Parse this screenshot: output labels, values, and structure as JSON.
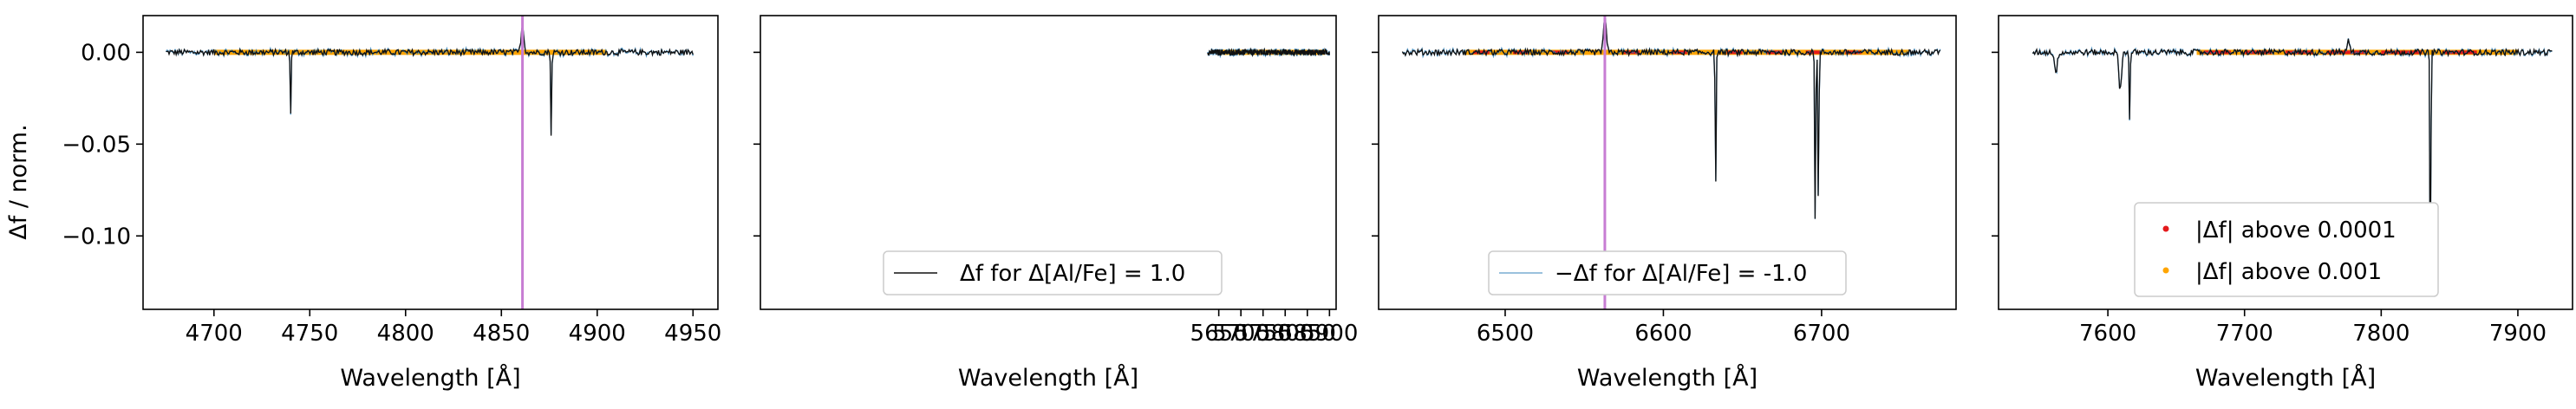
{
  "colors": {
    "delta_line": "#111111",
    "neg_delta_line": "#1f77b4",
    "above_0001": "#e41a1c",
    "above_001": "#ffa500",
    "marker_line": "#c77dd3",
    "axes": "#000000"
  },
  "chart_data": [
    {
      "type": "line",
      "panel": 1,
      "xlabel": "Wavelength [Å]",
      "ylabel": "Δf / norm.",
      "xlim": [
        4663,
        4963
      ],
      "ylim": [
        -0.14,
        0.02
      ],
      "xticks": [
        4700,
        4750,
        4800,
        4850,
        4900,
        4950
      ],
      "xtick_labels": [
        "4700",
        "4750",
        "4800",
        "4850",
        "4900",
        "4950"
      ],
      "yticks": [
        0.0,
        -0.05,
        -0.1
      ],
      "ytick_labels": [
        "0.00",
        "−0.05",
        "−0.10"
      ],
      "range": [
        4675,
        4950
      ],
      "marker_line": 4861,
      "features": [
        {
          "x": 4740,
          "y": -0.033
        },
        {
          "x": 4861,
          "y": 0.015
        },
        {
          "x": 4876,
          "y": -0.046
        }
      ],
      "highlight_orange": [
        [
          4700,
          4905
        ]
      ],
      "highlight_red": []
    },
    {
      "type": "line",
      "panel": 2,
      "xlabel": "Wavelength [Å]",
      "xlim": [
        4615,
        5915
      ],
      "ylim": [
        -0.14,
        0.02
      ],
      "xticks": [
        5650,
        5700,
        5750,
        5800,
        5850,
        5900
      ],
      "xtick_labels": [
        "5650",
        "5700",
        "5750",
        "5800",
        "5850",
        "5900"
      ],
      "range": [
        5625,
        5900
      ],
      "features": [],
      "highlight_orange": [
        [
          5650,
          5890
        ]
      ],
      "highlight_red": [
        [
          5765,
          5770
        ],
        [
          5820,
          5823
        ],
        [
          5862,
          5865
        ]
      ],
      "legend": {
        "label": "Δf for Δ[Al/Fe] = 1.0",
        "series": "delta"
      }
    },
    {
      "type": "line",
      "panel": 3,
      "xlabel": "Wavelength [Å]",
      "xlim": [
        6420,
        6785
      ],
      "ylim": [
        -0.14,
        0.02
      ],
      "xticks": [
        6500,
        6600,
        6700
      ],
      "xtick_labels": [
        "6500",
        "6600",
        "6700"
      ],
      "range": [
        6435,
        6775
      ],
      "marker_line": 6563,
      "features": [
        {
          "x": 6563,
          "y": 0.019
        },
        {
          "x": 6633,
          "y": -0.074
        },
        {
          "x": 6696,
          "y": -0.096
        },
        {
          "x": 6698,
          "y": -0.09
        }
      ],
      "highlight_orange": [
        [
          6475,
          6755
        ]
      ],
      "highlight_red": [
        [
          6480,
          6490
        ],
        [
          6505,
          6515
        ],
        [
          6530,
          6540
        ],
        [
          6575,
          6585
        ],
        [
          6605,
          6615
        ],
        [
          6640,
          6650
        ],
        [
          6665,
          6675
        ],
        [
          6690,
          6700
        ],
        [
          6715,
          6725
        ]
      ],
      "legend": {
        "label": "−Δf for Δ[Al/Fe] = -1.0",
        "series": "neg_delta"
      }
    },
    {
      "type": "line",
      "panel": 4,
      "xlabel": "Wavelength [Å]",
      "xlim": [
        7520,
        7940
      ],
      "ylim": [
        -0.14,
        0.02
      ],
      "xticks": [
        7600,
        7700,
        7800,
        7900
      ],
      "xtick_labels": [
        "7600",
        "7700",
        "7800",
        "7900"
      ],
      "range": [
        7545,
        7925
      ],
      "features": [
        {
          "x": 7562,
          "y": -0.011
        },
        {
          "x": 7609,
          "y": -0.02
        },
        {
          "x": 7616,
          "y": -0.038
        },
        {
          "x": 7776,
          "y": 0.006
        },
        {
          "x": 7836,
          "y": -0.145
        }
      ],
      "highlight_orange": [
        [
          7665,
          7900
        ]
      ],
      "highlight_red": [
        [
          7670,
          7690
        ],
        [
          7700,
          7720
        ],
        [
          7730,
          7750
        ],
        [
          7760,
          7790
        ],
        [
          7800,
          7830
        ],
        [
          7845,
          7870
        ]
      ],
      "legend": {
        "entries": [
          {
            "label": "|Δf| above 0.0001",
            "color": "#e41a1c"
          },
          {
            "label": "|Δf| above 0.001",
            "color": "#ffa500"
          }
        ]
      }
    }
  ]
}
